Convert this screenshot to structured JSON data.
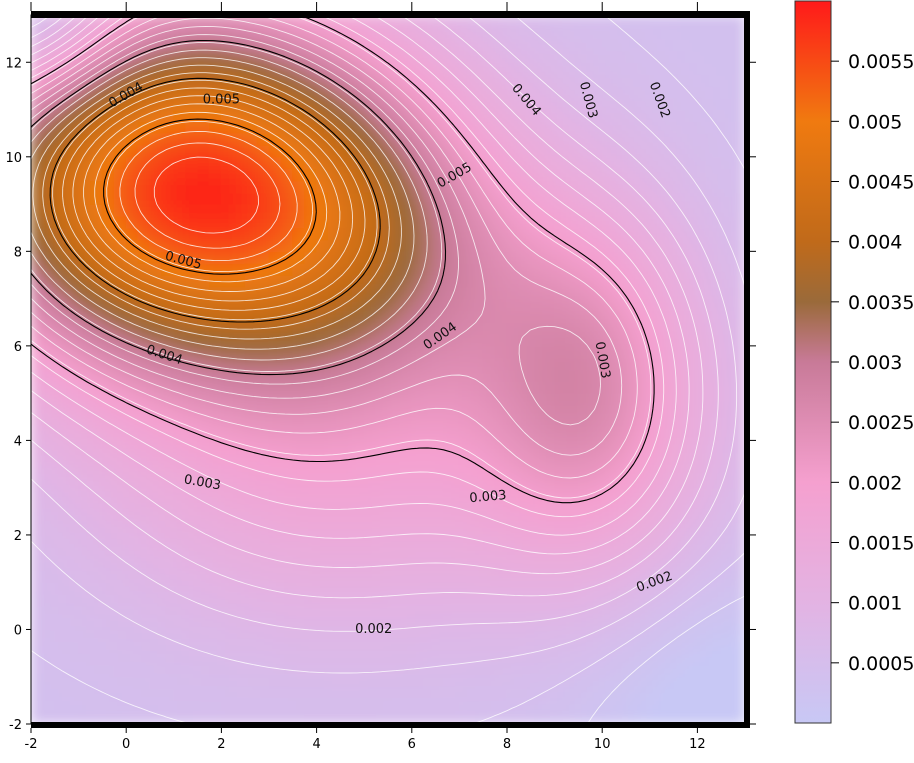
{
  "chart_data": {
    "type": "heatmap",
    "title": "",
    "xlabel": "",
    "ylabel": "",
    "xlim": [
      -2,
      13
    ],
    "ylim": [
      -2,
      13
    ],
    "x_ticks": [
      "-2",
      "0",
      "2",
      "4",
      "6",
      "8",
      "10",
      "12"
    ],
    "y_ticks": [
      "-2",
      "0",
      "2",
      "4",
      "6",
      "8",
      "10",
      "12"
    ],
    "colorbar": {
      "range": [
        0,
        0.006
      ],
      "ticks": [
        "0.0005",
        "0.001",
        "0.0015",
        "0.002",
        "0.0025",
        "0.003",
        "0.0035",
        "0.004",
        "0.0045",
        "0.005",
        "0.0055"
      ],
      "colors": [
        {
          "value": 0.0,
          "color": "#c8c8f5"
        },
        {
          "value": 0.001,
          "color": "#e3b3e3"
        },
        {
          "value": 0.002,
          "color": "#f5a0cf"
        },
        {
          "value": 0.003,
          "color": "#c87a98"
        },
        {
          "value": 0.0035,
          "color": "#9a6a3a"
        },
        {
          "value": 0.004,
          "color": "#c06a1a"
        },
        {
          "value": 0.005,
          "color": "#f07a10"
        },
        {
          "value": 0.006,
          "color": "#ff1a1a"
        }
      ]
    },
    "labeled_contours": [
      {
        "level": 0.002,
        "label": "0.002"
      },
      {
        "level": 0.003,
        "label": "0.003"
      },
      {
        "level": 0.004,
        "label": "0.004"
      },
      {
        "level": 0.005,
        "label": "0.005"
      }
    ],
    "contour_labels": [
      {
        "text": "0.004",
        "x": 0.0,
        "y": 11.3,
        "angle": -30
      },
      {
        "text": "0.005",
        "x": 2.0,
        "y": 11.2,
        "angle": 0
      },
      {
        "text": "0.004",
        "x": 8.4,
        "y": 11.2,
        "angle": 50
      },
      {
        "text": "0.003",
        "x": 9.7,
        "y": 11.2,
        "angle": 75
      },
      {
        "text": "0.002",
        "x": 11.2,
        "y": 11.2,
        "angle": 70
      },
      {
        "text": "0.005",
        "x": 6.9,
        "y": 9.6,
        "angle": -30
      },
      {
        "text": "0.005",
        "x": 1.2,
        "y": 7.8,
        "angle": 15
      },
      {
        "text": "0.004",
        "x": 6.6,
        "y": 6.2,
        "angle": -35
      },
      {
        "text": "0.004",
        "x": 0.8,
        "y": 5.8,
        "angle": 18
      },
      {
        "text": "0.003",
        "x": 10.0,
        "y": 5.7,
        "angle": 80
      },
      {
        "text": "0.003",
        "x": 1.6,
        "y": 3.1,
        "angle": 10
      },
      {
        "text": "0.003",
        "x": 7.6,
        "y": 2.8,
        "angle": -5
      },
      {
        "text": "0.002",
        "x": 11.1,
        "y": 1.0,
        "angle": -20
      },
      {
        "text": "0.002",
        "x": 5.2,
        "y": 0.0,
        "angle": 0
      }
    ],
    "grid": false,
    "legend": "colorbar-right"
  }
}
